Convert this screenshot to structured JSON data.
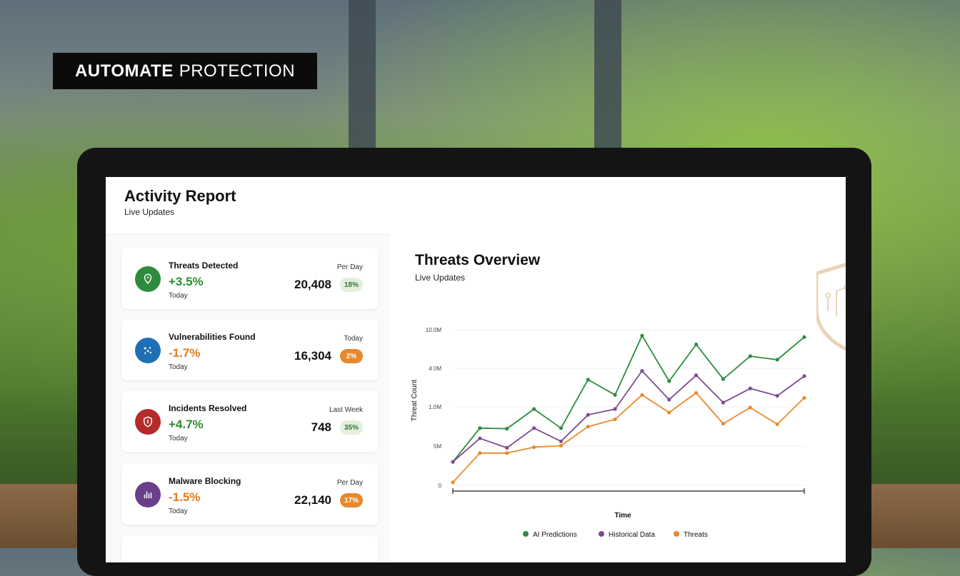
{
  "tagline": {
    "bold": "AUTOMATE",
    "light": "PROTECTION"
  },
  "header": {
    "title": "Activity Report",
    "subtitle": "Live Updates"
  },
  "cards": [
    {
      "title": "Threats Detected",
      "change": "+3.5%",
      "when": "Today",
      "period": "Per Day",
      "value": "20,408",
      "badge": "18%",
      "icon": "location-pin-icon",
      "color": "#2e8b3e"
    },
    {
      "title": "Vulnerabilities Found",
      "change": "-1.7%",
      "when": "Today",
      "period": "Today",
      "value": "16,304",
      "badge": "2%",
      "icon": "network-nodes-icon",
      "color": "#1f6fb5"
    },
    {
      "title": "Incidents Resolved",
      "change": "+4.7%",
      "when": "Today",
      "period": "Last Week",
      "value": "748",
      "badge": "35%",
      "icon": "shield-icon",
      "color": "#b52a2a"
    },
    {
      "title": "Malware Blocking",
      "change": "-1.5%",
      "when": "Today",
      "period": "Per Day",
      "value": "22,140",
      "badge": "17%",
      "icon": "bar-chart-icon",
      "color": "#6a3f8a"
    }
  ],
  "chart": {
    "title": "Threats Overview",
    "subtitle": "Live Updates"
  },
  "chart_data": {
    "type": "line",
    "xlabel": "Time",
    "ylabel": "Threat Count",
    "y_ticks": [
      "0",
      "5M",
      "1.0M",
      "4 0M",
      "10.0M"
    ],
    "grid": true,
    "legend_position": "bottom",
    "series": [
      {
        "name": "AI Predictions",
        "color": "#2e8b3e",
        "values": [
          0.8,
          1.95,
          1.93,
          2.6,
          1.95,
          3.6,
          3.08,
          5.1,
          3.55,
          4.8,
          3.62,
          4.4,
          4.28,
          5.05
        ]
      },
      {
        "name": "Historical Data",
        "color": "#7d4c92",
        "values": [
          0.8,
          1.6,
          1.28,
          1.95,
          1.5,
          2.4,
          2.6,
          3.9,
          2.92,
          3.75,
          2.82,
          3.3,
          3.05,
          3.72
        ]
      },
      {
        "name": "Threats",
        "color": "#e98a2d",
        "values": [
          0.1,
          1.1,
          1.1,
          1.3,
          1.35,
          2.0,
          2.25,
          3.08,
          2.48,
          3.15,
          2.1,
          2.65,
          2.08,
          2.98
        ]
      }
    ]
  }
}
